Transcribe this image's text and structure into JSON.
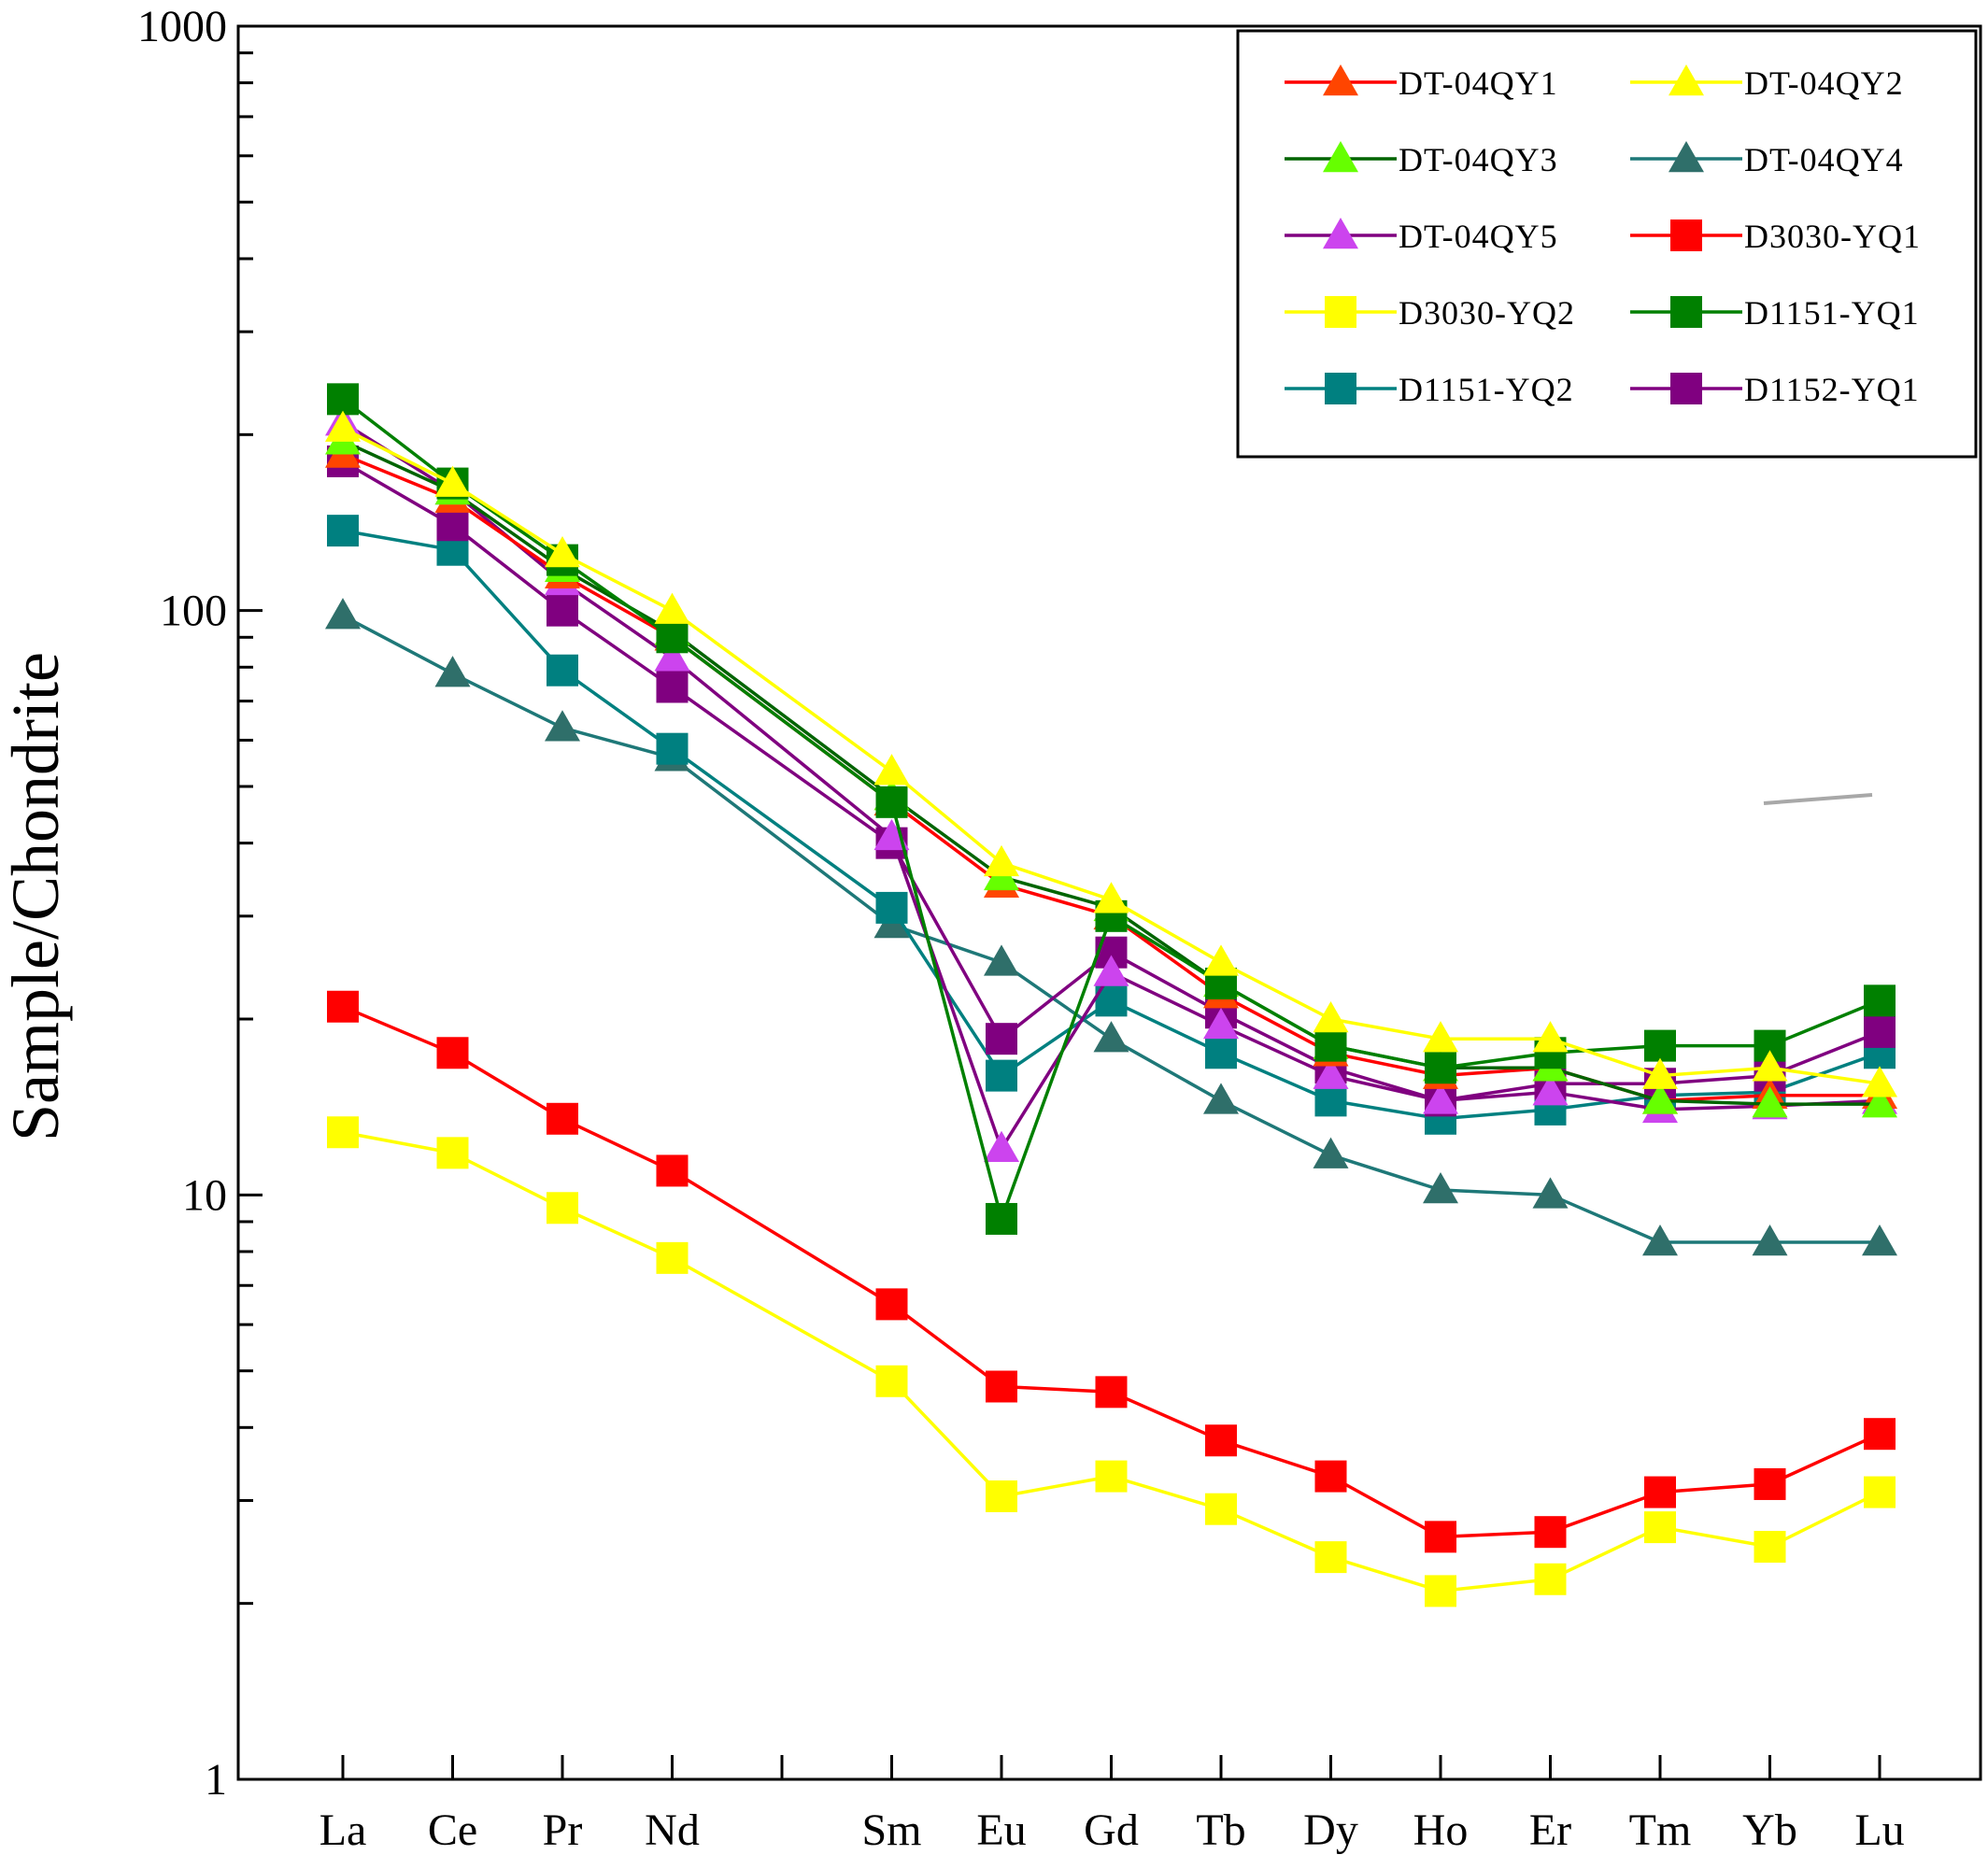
{
  "chart_data": {
    "type": "line",
    "ylabel": "Sample/Chondrite",
    "xlabel": "",
    "yscale": "log",
    "ylim": [
      1,
      1000
    ],
    "y_tick_labels": [
      "1",
      "10",
      "100",
      "1000"
    ],
    "categories": [
      "La",
      "Ce",
      "Pr",
      "Nd",
      "",
      "Sm",
      "Eu",
      "Gd",
      "Tb",
      "Dy",
      "Ho",
      "Er",
      "Tm",
      "Yb",
      "Lu"
    ],
    "legend_position": "top-right",
    "grid": false,
    "series": [
      {
        "name": "DT-04QY1",
        "marker": "triangle",
        "color": "#ff0000",
        "marker_color": "#ff4500",
        "values": [
          185,
          155,
          115,
          90,
          null,
          47,
          34,
          30,
          22,
          17.5,
          16,
          16.5,
          14.5,
          14.8,
          14.8
        ]
      },
      {
        "name": "DT-04QY2",
        "marker": "triangle",
        "color": "#ffff00",
        "marker_color": "#ffff00",
        "values": [
          205,
          165,
          125,
          100,
          null,
          53,
          37,
          32,
          25,
          20,
          18.5,
          18.5,
          16,
          16.5,
          15.5
        ]
      },
      {
        "name": "DT-04QY3",
        "marker": "triangle",
        "color": "#006400",
        "marker_color": "#66ff00",
        "values": [
          195,
          160,
          118,
          92,
          null,
          48,
          35,
          31,
          23,
          18,
          16.5,
          16.5,
          14.5,
          14.3,
          14.3
        ]
      },
      {
        "name": "DT-04QY4",
        "marker": "triangle",
        "color": "#1e7878",
        "marker_color": "#2f6f6a",
        "values": [
          98,
          78,
          63,
          56,
          null,
          29,
          25,
          18.5,
          14.5,
          11.7,
          10.2,
          10.0,
          8.3,
          8.3,
          8.3
        ]
      },
      {
        "name": "DT-04QY5",
        "marker": "triangle",
        "color": "#800080",
        "marker_color": "#cc44ee",
        "values": [
          210,
          160,
          112,
          83,
          null,
          41,
          12,
          24,
          19.5,
          16,
          14.5,
          15,
          14,
          14.2,
          14.5
        ]
      },
      {
        "name": "D3030-YQ1",
        "marker": "square",
        "color": "#ff0000",
        "marker_color": "#ff0000",
        "values": [
          21,
          17.5,
          13.5,
          11,
          null,
          6.5,
          4.7,
          4.6,
          3.8,
          3.3,
          2.6,
          2.65,
          3.1,
          3.2,
          3.9
        ]
      },
      {
        "name": "D3030-YQ2",
        "marker": "square",
        "color": "#ffff00",
        "marker_color": "#ffff00",
        "values": [
          12.8,
          11.8,
          9.5,
          7.8,
          null,
          4.8,
          3.05,
          3.3,
          2.9,
          2.4,
          2.1,
          2.2,
          2.7,
          2.5,
          3.1
        ]
      },
      {
        "name": "D1151-YQ1",
        "marker": "square",
        "color": "#008000",
        "marker_color": "#008000",
        "values": [
          230,
          165,
          122,
          90,
          null,
          47,
          9.1,
          30,
          23,
          18,
          16.5,
          17.5,
          18,
          18,
          21.5
        ]
      },
      {
        "name": "D1151-YQ2",
        "marker": "square",
        "color": "#008080",
        "marker_color": "#008080",
        "values": [
          137,
          127,
          79,
          58,
          null,
          31,
          16,
          21.5,
          17.5,
          14.5,
          13.5,
          14,
          14.8,
          15,
          17.5
        ]
      },
      {
        "name": "D1152-YQ1",
        "marker": "square",
        "color": "#800080",
        "marker_color": "#800080",
        "values": [
          180,
          140,
          100,
          74,
          null,
          40,
          18.5,
          26,
          20.5,
          16.5,
          14.5,
          15.5,
          15.5,
          16,
          19
        ]
      }
    ]
  }
}
